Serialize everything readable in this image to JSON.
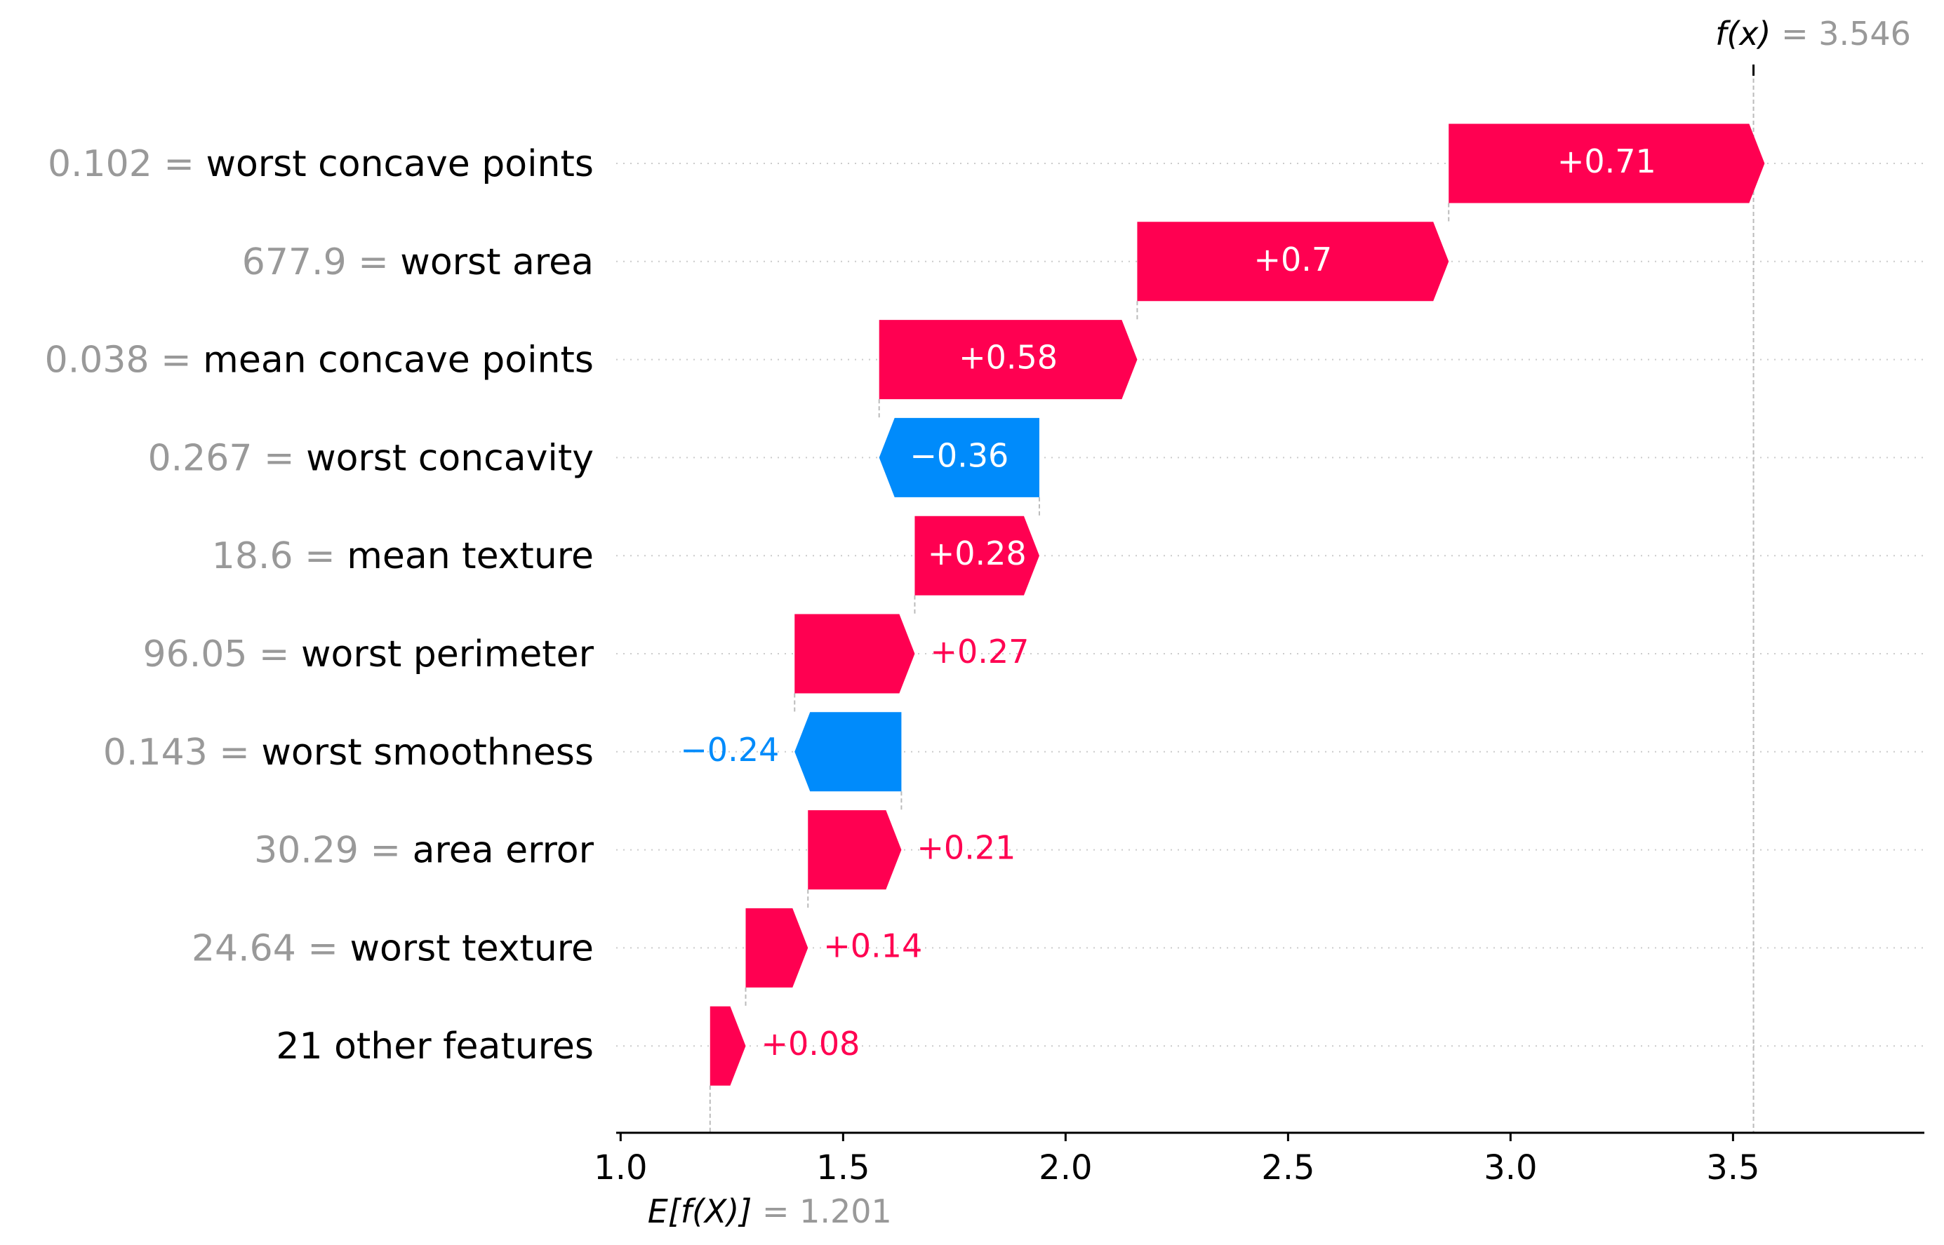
{
  "chart_data": {
    "type": "waterfall",
    "title": "",
    "xlabel": "",
    "ylabel": "",
    "xlim": [
      0.99,
      3.93
    ],
    "x_ticks": [
      "1.0",
      "1.5",
      "2.0",
      "2.5",
      "3.0",
      "3.5"
    ],
    "x_tick_values": [
      1.0,
      1.5,
      2.0,
      2.5,
      3.0,
      3.5
    ],
    "base_value": 1.201,
    "base_label_prefix": "E[f(X)]",
    "base_label_value": "= 1.201",
    "output_value": 3.546,
    "output_label_prefix": "f(x)",
    "output_label_value": "= 3.546",
    "grid": "horizontal dotted per feature row",
    "colors": {
      "positive": "#ff0051",
      "negative": "#008bfb",
      "value_text": "#999999",
      "feature_text": "#000000"
    },
    "features": [
      {
        "value": "0.102",
        "name": "worst concave points",
        "contribution": 0.71,
        "label": "+0.71"
      },
      {
        "value": "677.9",
        "name": "worst area",
        "contribution": 0.7,
        "label": "+0.7"
      },
      {
        "value": "0.038",
        "name": "mean concave points",
        "contribution": 0.58,
        "label": "+0.58"
      },
      {
        "value": "0.267",
        "name": "worst concavity",
        "contribution": -0.36,
        "label": "−0.36"
      },
      {
        "value": "18.6",
        "name": "mean texture",
        "contribution": 0.28,
        "label": "+0.28"
      },
      {
        "value": "96.05",
        "name": "worst perimeter",
        "contribution": 0.27,
        "label": "+0.27"
      },
      {
        "value": "0.143",
        "name": "worst smoothness",
        "contribution": -0.24,
        "label": "−0.24"
      },
      {
        "value": "30.29",
        "name": "area error",
        "contribution": 0.21,
        "label": "+0.21"
      },
      {
        "value": "24.64",
        "name": "worst texture",
        "contribution": 0.14,
        "label": "+0.14"
      },
      {
        "value": "",
        "name": "21 other features",
        "contribution": 0.08,
        "label": "+0.08"
      }
    ]
  }
}
